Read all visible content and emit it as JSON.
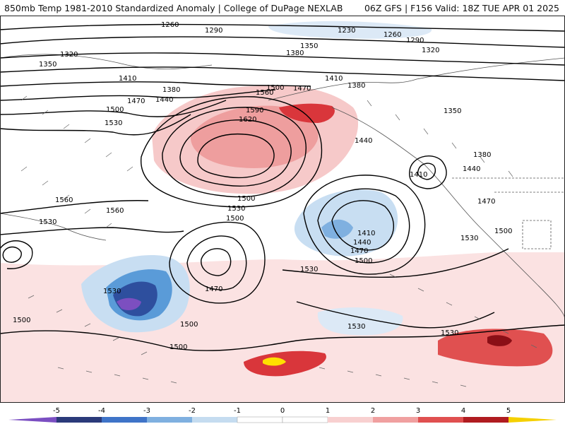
{
  "header": {
    "title_left": "850mb Temp 1981-2010 Standardized Anomaly | College of DuPage NEXLAB",
    "title_right": "06Z GFS | F156 Valid: 18Z TUE APR 01 2025"
  },
  "contour_labels": [
    "1260",
    "1290",
    "1230",
    "1260",
    "1290",
    "1320",
    "1350",
    "1380",
    "1350",
    "1320",
    "1410",
    "1380",
    "1440",
    "1470",
    "1500",
    "1530",
    "1560",
    "1590",
    "1620",
    "1500",
    "1470",
    "1410",
    "1380",
    "1350",
    "1440",
    "1410",
    "1380",
    "1440",
    "1470",
    "1560",
    "1560",
    "1530",
    "1500",
    "1530",
    "1500",
    "1470",
    "1410",
    "1440",
    "1470",
    "1500",
    "1530",
    "1530",
    "1500",
    "1500",
    "1530",
    "1500",
    "1500",
    "1530",
    "1530"
  ],
  "legend": {
    "ticks": [
      "-5",
      "-4",
      "-3",
      "-2",
      "-1",
      "0",
      "1",
      "2",
      "3",
      "4",
      "5"
    ],
    "colors": [
      "#7b4fc2",
      "#2b3a7a",
      "#3f74c8",
      "#7fb0e0",
      "#c5dcf0",
      "#ffffff",
      "#ffffff",
      "#f8d0d0",
      "#f0a0a0",
      "#e05050",
      "#b01c20",
      "#7a0a10",
      "#f5d000"
    ]
  },
  "colors": {
    "warm_light": "#f6c9c9",
    "warm_mid": "#ee9e9e",
    "warm_strong": "#d9363b",
    "warm_darkest": "#8a0f16",
    "cold_light": "#c8def2",
    "cold_mid": "#5a9bd8",
    "cold_strong": "#2e4f9e",
    "cold_darkest": "#7c4fc0",
    "yellow": "#ffe000"
  }
}
